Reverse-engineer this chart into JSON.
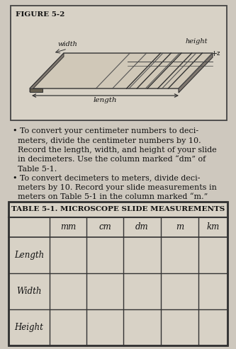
{
  "bg_color": "#cec8be",
  "fig_box_facecolor": "#d8d2c6",
  "figure_label": "FIGURE 5-2",
  "label_width": "width",
  "label_height": "height",
  "label_length": "length",
  "bullet1_line1": "• To convert your centimeter numbers to deci-",
  "bullet1_line2": "  meters, divide the centimeter numbers by 10.",
  "bullet1_line3": "  Record the length, width, and height of your slide",
  "bullet1_line4": "  in decimeters. Use the column marked “dm” of",
  "bullet1_line5": "  Table 5-1.",
  "bullet2_line1": "• To convert decimeters to meters, divide deci-",
  "bullet2_line2": "  meters by 10. Record your slide measurements in",
  "bullet2_line3": "  meters on Table 5-1 in the column marked “m.”",
  "table_title": "TABLE 5-1. MICROSCOPE SLIDE MEASUREMENTS",
  "col_headers": [
    "",
    "mm",
    "cm",
    "dm",
    "m",
    "km"
  ],
  "row_labels": [
    "Length",
    "Width",
    "Height"
  ],
  "text_color": "#111111",
  "slide_face_color": "#b8b0a0",
  "slide_top_color": "#d0c8b8",
  "slide_dark_color": "#807870",
  "slide_edge_color": "#333333",
  "table_bg": "#d8d2c6",
  "table_border": "#333333"
}
